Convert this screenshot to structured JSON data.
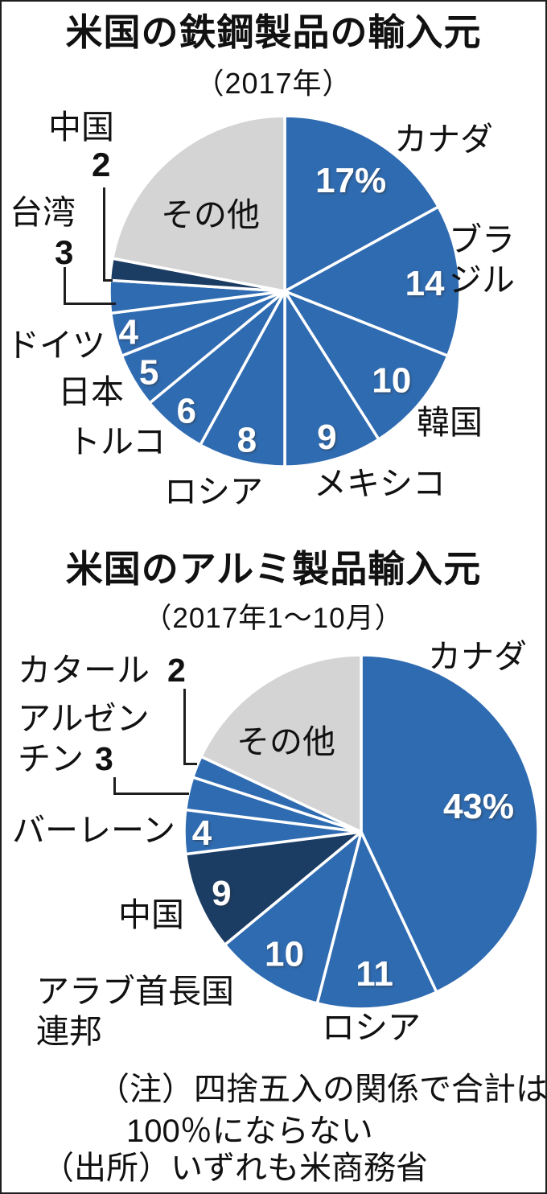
{
  "colors": {
    "blue": "#2F6BB1",
    "dark": "#1B3C63",
    "gray": "#D4D4D4",
    "slice_border": "#FFFFFF",
    "text": "#111111",
    "inside_label": "#FFFFFF"
  },
  "notes": [
    "（注）四捨五入の関係で合計は",
    "100％にならない",
    "（出所）いずれも米商務省"
  ],
  "chart_data": [
    {
      "type": "pie",
      "title": "米国の鉄鋼製品の輸入元",
      "subtitle": "（2017年）",
      "start": "12-oclock",
      "direction": "clockwise",
      "unit": "%",
      "slices": [
        {
          "name": "カナダ",
          "value": 17,
          "inside_label": "17%",
          "color": "blue",
          "label_r": 0.74
        },
        {
          "name": "ブラジル",
          "value": 14,
          "inside_label": "14",
          "color": "blue",
          "label_r": 0.8
        },
        {
          "name": "韓国",
          "value": 10,
          "inside_label": "10",
          "color": "blue",
          "label_r": 0.79
        },
        {
          "name": "メキシコ",
          "value": 9,
          "inside_label": "9",
          "color": "blue",
          "label_r": 0.86
        },
        {
          "name": "ロシア",
          "value": 8,
          "inside_label": "8",
          "color": "blue",
          "label_r": 0.87
        },
        {
          "name": "トルコ",
          "value": 6,
          "inside_label": "6",
          "color": "blue",
          "label_r": 0.88
        },
        {
          "name": "日本",
          "value": 5,
          "inside_label": "5",
          "color": "blue",
          "label_r": 0.9
        },
        {
          "name": "ドイツ",
          "value": 4,
          "inside_label": "4",
          "color": "blue",
          "label_r": 0.92
        },
        {
          "name": "台湾",
          "value": 3,
          "inside_label": "",
          "color": "blue",
          "label_r": 0
        },
        {
          "name": "中国",
          "value": 2,
          "inside_label": "",
          "color": "dark",
          "label_r": 0
        },
        {
          "name": "その他",
          "value": 22,
          "inside_label": "",
          "color": "gray",
          "label_r": 0
        }
      ]
    },
    {
      "type": "pie",
      "title": "米国のアルミ製品輸入元",
      "subtitle": "（2017年1～10月）",
      "start": "12-oclock",
      "direction": "clockwise",
      "unit": "%",
      "slices": [
        {
          "name": "カナダ",
          "value": 43,
          "inside_label": "43%",
          "color": "blue",
          "label_r": 0.68
        },
        {
          "name": "ロシア",
          "value": 11,
          "inside_label": "11",
          "color": "blue",
          "label_r": 0.8
        },
        {
          "name": "アラブ首長国連邦",
          "value": 10,
          "inside_label": "10",
          "color": "blue",
          "label_r": 0.81
        },
        {
          "name": "中国",
          "value": 9,
          "inside_label": "9",
          "color": "dark",
          "label_r": 0.86
        },
        {
          "name": "バーレーン",
          "value": 4,
          "inside_label": "4",
          "color": "blue",
          "label_r": 0.9
        },
        {
          "name": "アルゼンチン",
          "value": 3,
          "inside_label": "",
          "color": "blue",
          "label_r": 0
        },
        {
          "name": "カタール",
          "value": 2,
          "inside_label": "",
          "color": "blue",
          "label_r": 0
        },
        {
          "name": "その他",
          "value": 18,
          "inside_label": "",
          "color": "gray",
          "label_r": 0
        }
      ]
    }
  ]
}
